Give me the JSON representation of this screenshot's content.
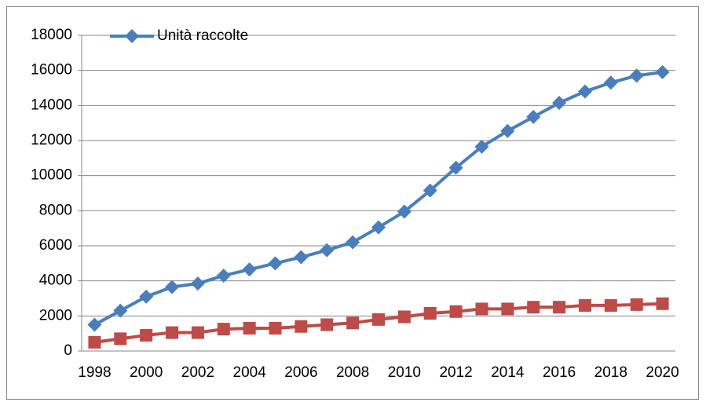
{
  "chart_data": {
    "type": "line",
    "categories": [
      "1998",
      null,
      "2000",
      null,
      "2002",
      null,
      "2004",
      null,
      "2006",
      null,
      "2008",
      null,
      "2010",
      null,
      "2012",
      null,
      "2014",
      null,
      "2016",
      null,
      "2018",
      null,
      "2020"
    ],
    "series": [
      {
        "name": "Unità raccolte",
        "color": "#4a7ebb",
        "marker": "diamond",
        "values": [
          1500,
          2300,
          3100,
          3650,
          3850,
          4300,
          4650,
          5000,
          5350,
          5750,
          6200,
          7050,
          7950,
          9150,
          10450,
          11650,
          12550,
          13350,
          14150,
          14800,
          15300,
          15700,
          15900
        ]
      },
      {
        "color": "#be4b48",
        "marker": "square",
        "values": [
          500,
          700,
          900,
          1050,
          1050,
          1250,
          1300,
          1300,
          1400,
          1500,
          1600,
          1800,
          1950,
          2150,
          2250,
          2400,
          2400,
          2500,
          2500,
          2600,
          2600,
          2650,
          2700
        ]
      }
    ],
    "ylim": [
      0,
      18000
    ],
    "yticks": [
      0,
      2000,
      4000,
      6000,
      8000,
      10000,
      12000,
      14000,
      16000,
      18000
    ],
    "grid": true,
    "legend": "top-left"
  }
}
